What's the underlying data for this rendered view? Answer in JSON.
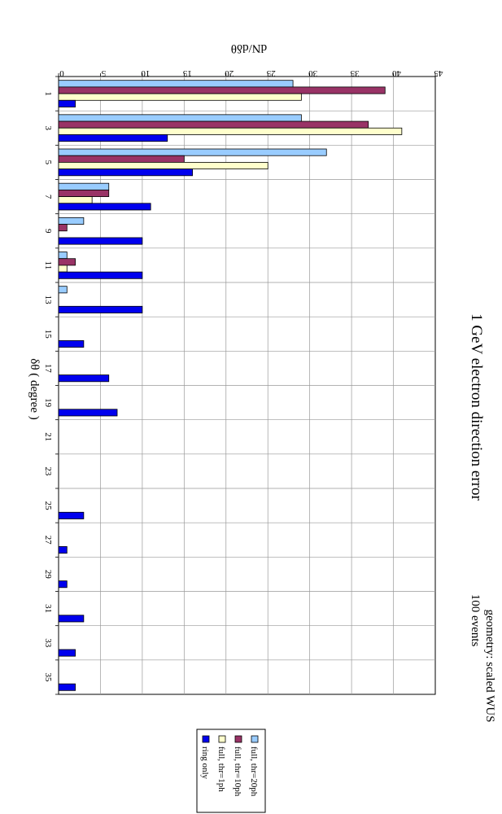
{
  "chart_data": {
    "type": "bar",
    "orientation": "rotated-90-clockwise",
    "title": "1 GeV electron direction error",
    "annotation_lines": [
      "geometry: scaled WUS",
      "100 events"
    ],
    "xlabel": "δθ ( degree )",
    "ylabel": "dN/dδθ",
    "ylim": [
      0,
      45
    ],
    "ytick_step": 5,
    "grid": true,
    "legend_position": "bottom",
    "categories": [
      "1",
      "3",
      "5",
      "7",
      "9",
      "11",
      "13",
      "15",
      "17",
      "19",
      "21",
      "23",
      "25",
      "27",
      "29",
      "31",
      "33",
      "35"
    ],
    "series": [
      {
        "name": "full, thr=20ph",
        "color": "#99ccff",
        "values": [
          28,
          29,
          32,
          6,
          3,
          1,
          1,
          0,
          0,
          0,
          0,
          0,
          0,
          0,
          0,
          0,
          0,
          0
        ]
      },
      {
        "name": "full, thr=10ph",
        "color": "#993366",
        "values": [
          39,
          37,
          15,
          6,
          1,
          2,
          0,
          0,
          0,
          0,
          0,
          0,
          0,
          0,
          0,
          0,
          0,
          0
        ]
      },
      {
        "name": "full, thr=1ph",
        "color": "#ffffcc",
        "values": [
          29,
          41,
          25,
          4,
          0,
          1,
          0,
          0,
          0,
          0,
          0,
          0,
          0,
          0,
          0,
          0,
          0,
          0
        ]
      },
      {
        "name": "ring only",
        "color": "#0000ee",
        "values": [
          2,
          13,
          16,
          11,
          10,
          10,
          10,
          3,
          6,
          7,
          0,
          0,
          3,
          1,
          1,
          3,
          2,
          2
        ]
      }
    ]
  }
}
